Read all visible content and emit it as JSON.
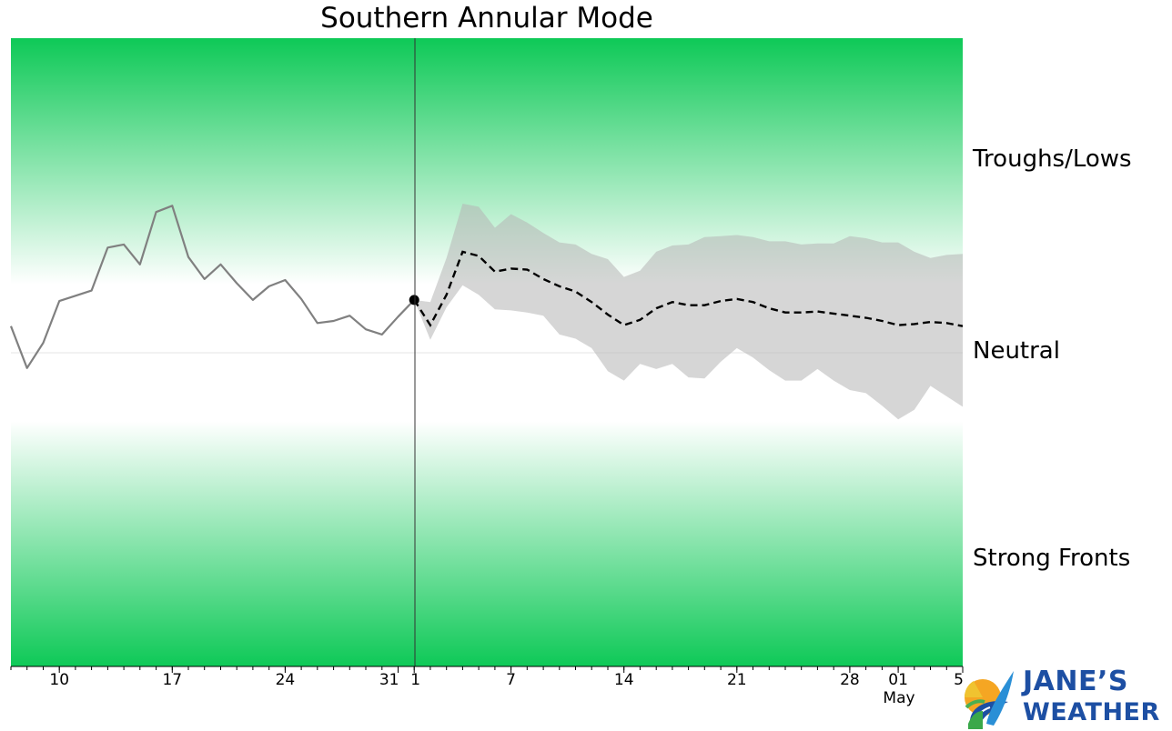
{
  "chart_data": {
    "type": "line",
    "title": "Southern Annular Mode",
    "band_labels": [
      "Troughs/Lows",
      "Neutral",
      "Strong Fronts"
    ],
    "band_color": "#0ec957",
    "x_tick_labels": [
      "10",
      "17",
      "24",
      "31",
      "1",
      "7",
      "14",
      "21",
      "28",
      "01",
      "5"
    ],
    "highlight_tick": "1",
    "highlight_color": "#e53935",
    "month_label": "May",
    "x_range": [
      "2026-03-07",
      "2026-05-05"
    ],
    "ylim": [
      -3,
      3
    ],
    "neutral_band": [
      -0.5,
      0.5
    ],
    "forecast_start": "2026-04-01",
    "observed": {
      "x": [
        "2026-03-07",
        "2026-03-08",
        "2026-03-09",
        "2026-03-10",
        "2026-03-11",
        "2026-03-12",
        "2026-03-13",
        "2026-03-14",
        "2026-03-15",
        "2026-03-16",
        "2026-03-17",
        "2026-03-18",
        "2026-03-19",
        "2026-03-20",
        "2026-03-21",
        "2026-03-22",
        "2026-03-23",
        "2026-03-24",
        "2026-03-25",
        "2026-03-26",
        "2026-03-27",
        "2026-03-28",
        "2026-03-29",
        "2026-03-30",
        "2026-03-31",
        "2026-04-01"
      ],
      "y": [
        0.25,
        -0.15,
        0.09,
        0.49,
        0.54,
        0.59,
        1.0,
        1.03,
        0.84,
        1.34,
        1.4,
        0.91,
        0.7,
        0.84,
        0.66,
        0.5,
        0.63,
        0.69,
        0.51,
        0.28,
        0.3,
        0.35,
        0.22,
        0.17,
        0.34,
        0.5
      ],
      "color": "#808080"
    },
    "forecast": {
      "x": [
        "2026-04-01",
        "2026-04-02",
        "2026-04-03",
        "2026-04-04",
        "2026-04-05",
        "2026-04-06",
        "2026-04-07",
        "2026-04-08",
        "2026-04-09",
        "2026-04-10",
        "2026-04-11",
        "2026-04-12",
        "2026-04-13",
        "2026-04-14",
        "2026-04-15",
        "2026-04-16",
        "2026-04-17",
        "2026-04-18",
        "2026-04-19",
        "2026-04-20",
        "2026-04-21",
        "2026-04-22",
        "2026-04-23",
        "2026-04-24",
        "2026-04-25",
        "2026-04-26",
        "2026-04-27",
        "2026-04-28",
        "2026-04-29",
        "2026-04-30",
        "2026-05-01",
        "2026-05-02",
        "2026-05-03",
        "2026-05-04",
        "2026-05-05"
      ],
      "mean": [
        0.5,
        0.26,
        0.55,
        0.96,
        0.92,
        0.77,
        0.8,
        0.79,
        0.7,
        0.63,
        0.58,
        0.48,
        0.36,
        0.26,
        0.31,
        0.42,
        0.48,
        0.45,
        0.45,
        0.49,
        0.51,
        0.48,
        0.42,
        0.38,
        0.38,
        0.39,
        0.37,
        0.35,
        0.33,
        0.3,
        0.26,
        0.27,
        0.29,
        0.28,
        0.25
      ],
      "upper": [
        0.5,
        0.48,
        0.9,
        1.42,
        1.39,
        1.19,
        1.32,
        1.24,
        1.14,
        1.05,
        1.03,
        0.94,
        0.89,
        0.72,
        0.78,
        0.96,
        1.02,
        1.03,
        1.1,
        1.11,
        1.12,
        1.1,
        1.06,
        1.06,
        1.03,
        1.04,
        1.04,
        1.11,
        1.09,
        1.05,
        1.05,
        0.96,
        0.9,
        0.93,
        0.94
      ],
      "lower": [
        0.5,
        0.12,
        0.43,
        0.64,
        0.55,
        0.41,
        0.4,
        0.38,
        0.35,
        0.17,
        0.13,
        0.04,
        -0.18,
        -0.27,
        -0.11,
        -0.16,
        -0.11,
        -0.24,
        -0.25,
        -0.09,
        0.04,
        -0.05,
        -0.17,
        -0.27,
        -0.27,
        -0.16,
        -0.27,
        -0.36,
        -0.39,
        -0.51,
        -0.64,
        -0.55,
        -0.32,
        -0.42,
        -0.52
      ],
      "line_color": "#000000",
      "band_color": "#b4b4b4"
    }
  },
  "logo": {
    "line1": "JANE’S",
    "line2": "WEATHER",
    "color": "#1d4fa3"
  }
}
